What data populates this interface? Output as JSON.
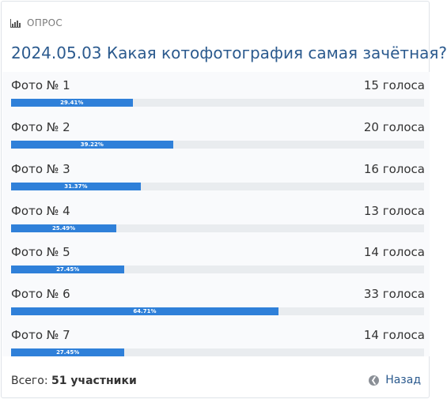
{
  "poll": {
    "type_label": "ОПРОС",
    "title": "2024.05.03 Какая котофотография самая зачётная?",
    "options": [
      {
        "label": "Фото № 1",
        "votes": "15 голоса",
        "percent_label": "29.41%",
        "fraction": 0.2941
      },
      {
        "label": "Фото № 2",
        "votes": "20 голоса",
        "percent_label": "39.22%",
        "fraction": 0.3922
      },
      {
        "label": "Фото № 3",
        "votes": "16 голоса",
        "percent_label": "31.37%",
        "fraction": 0.3137
      },
      {
        "label": "Фото № 4",
        "votes": "13 голоса",
        "percent_label": "25.49%",
        "fraction": 0.2549
      },
      {
        "label": "Фото № 5",
        "votes": "14 голоса",
        "percent_label": "27.45%",
        "fraction": 0.2745
      },
      {
        "label": "Фото № 6",
        "votes": "33 голоса",
        "percent_label": "64.71%",
        "fraction": 0.6471
      },
      {
        "label": "Фото № 7",
        "votes": "14 голоса",
        "percent_label": "27.45%",
        "fraction": 0.2745
      }
    ],
    "total_prefix": "Всего:",
    "total_value": "51 участники",
    "back_label": "Назад"
  },
  "icons": {
    "header": "bar-chart-icon",
    "back": "circle-arrow-left-icon"
  },
  "colors": {
    "title": "#2b5a8e",
    "bar_fill": "#2f80d9",
    "bar_track": "#e9ecef",
    "list_bg": "#f9fafc"
  }
}
